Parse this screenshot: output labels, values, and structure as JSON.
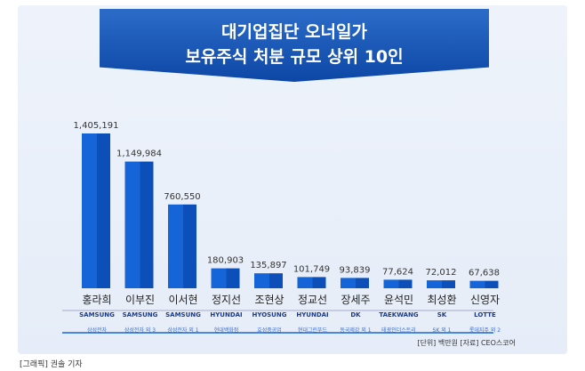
{
  "title": {
    "line1": "대기업집단 오너일가",
    "line2": "보유주식 처분 규모 상위 10인"
  },
  "chart_data": {
    "type": "bar",
    "categories": [
      "홍라희",
      "이부진",
      "이서현",
      "정지선",
      "조현상",
      "정교선",
      "장세주",
      "윤석민",
      "최성환",
      "신영자"
    ],
    "values": [
      1405191,
      1149984,
      760550,
      180903,
      135897,
      101749,
      93839,
      77624,
      72012,
      67638
    ],
    "value_labels": [
      "1,405,191",
      "1,149,984",
      "760,550",
      "180,903",
      "135,897",
      "101,749",
      "93,839",
      "77,624",
      "72,012",
      "67,638"
    ],
    "companies": [
      "SAMSUNG",
      "SAMSUNG",
      "SAMSUNG",
      "HYUNDAI",
      "HYOSUNG",
      "HYUNDAI",
      "DK",
      "TAEKWANG",
      "SK",
      "LOTTE"
    ],
    "company_notes": [
      "삼성전자",
      "삼성전자 외 3",
      "삼성전자 외 1",
      "현대백화점",
      "효성중공업",
      "현대그린푸드",
      "동국제강 외 1",
      "태광인더스트리",
      "SK 외 1",
      "롯데지주 외 2"
    ],
    "ylim": [
      0,
      1405191
    ],
    "bar_color": "#1565d8"
  },
  "unit": "[단위] 백만원   [자료] CEO스코어",
  "credit": "[그래픽] 권솔 기자"
}
